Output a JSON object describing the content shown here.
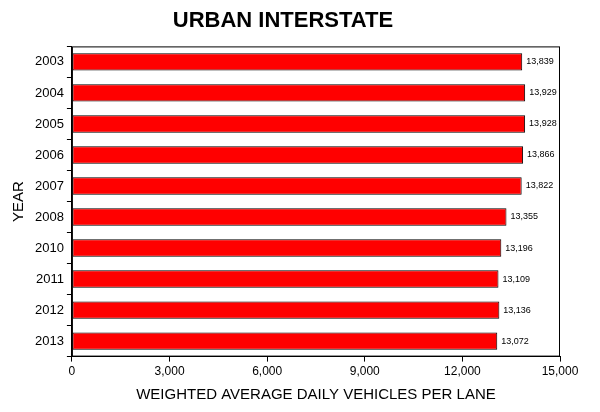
{
  "chart_data": {
    "type": "bar",
    "orientation": "horizontal",
    "title": "URBAN INTERSTATE",
    "x_label": "WEIGHTED AVERAGE DAILY VEHICLES PER LANE",
    "y_label": "YEAR",
    "categories": [
      "2003",
      "2004",
      "2005",
      "2006",
      "2007",
      "2008",
      "2010",
      "2011",
      "2012",
      "2013"
    ],
    "values": [
      13839,
      13929,
      13928,
      13866,
      13822,
      13355,
      13196,
      13109,
      13136,
      13072
    ],
    "value_labels": [
      "13,839",
      "13,929",
      "13,928",
      "13,866",
      "13,822",
      "13,355",
      "13,196",
      "13,109",
      "13,136",
      "13,072"
    ],
    "data_labels": true,
    "color": "#ff0000",
    "xlim": [
      0,
      15000
    ],
    "xticks": [
      0,
      {
        "value": 3000,
        "label": "3,000"
      },
      {
        "value": 6000,
        "label": "6,000"
      },
      {
        "value": 9000,
        "label": "9,000"
      },
      {
        "value": 12000,
        "label": "12,000"
      },
      {
        "value": 15000,
        "label": "15,000"
      }
    ],
    "grid": false
  }
}
